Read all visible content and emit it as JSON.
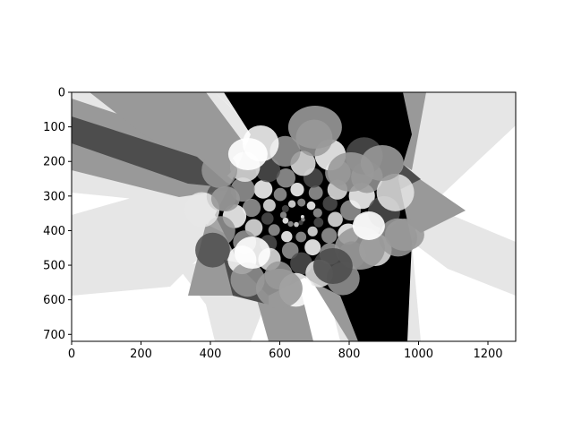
{
  "chart_data": {
    "type": "heatmap",
    "description_kind": "grayscale image",
    "title": "",
    "xlabel": "",
    "ylabel": "",
    "xlim": [
      0,
      1280
    ],
    "ylim": [
      720,
      0
    ],
    "x_ticks": [
      0,
      200,
      400,
      600,
      800,
      1000,
      1200
    ],
    "y_ticks": [
      0,
      100,
      200,
      300,
      400,
      500,
      600,
      700
    ],
    "x_tick_labels": [
      "0",
      "200",
      "400",
      "600",
      "800",
      "1000",
      "1200"
    ],
    "y_tick_labels": [
      "0",
      "100",
      "200",
      "300",
      "400",
      "500",
      "600",
      "700"
    ],
    "grid": false,
    "colormap": "gray",
    "colors": {
      "black": "#000000",
      "dark_gray": "#4d4d4d",
      "mid_gray": "#999999",
      "light_gray": "#e6e6e6",
      "white": "#ffffff"
    },
    "center": [
      650,
      360
    ]
  }
}
